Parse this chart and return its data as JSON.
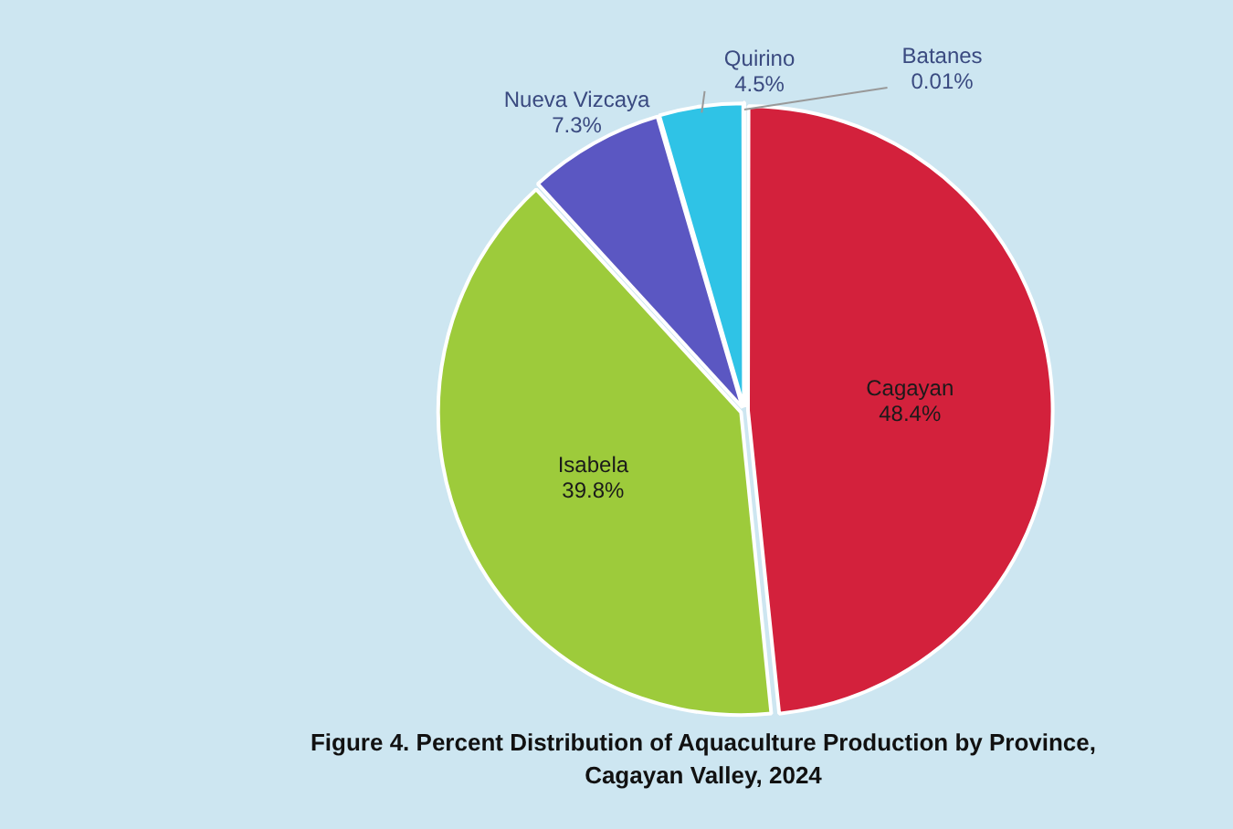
{
  "chart_data": {
    "type": "pie",
    "title": "Figure 4. Percent Distribution of Aquaculture Production by Province, Cagayan Valley, 2024",
    "categories": [
      "Cagayan",
      "Isabela",
      "Nueva Vizcaya",
      "Quirino",
      "Batanes"
    ],
    "values": [
      48.4,
      39.8,
      7.3,
      4.5,
      0.01
    ],
    "colors": [
      "#d3213c",
      "#9dcb3b",
      "#5b57c2",
      "#2fc3e6",
      "#d8d8d8"
    ],
    "value_labels": [
      "48.4%",
      "39.8%",
      "7.3%",
      "4.5%",
      "0.01%"
    ],
    "legend": false
  }
}
